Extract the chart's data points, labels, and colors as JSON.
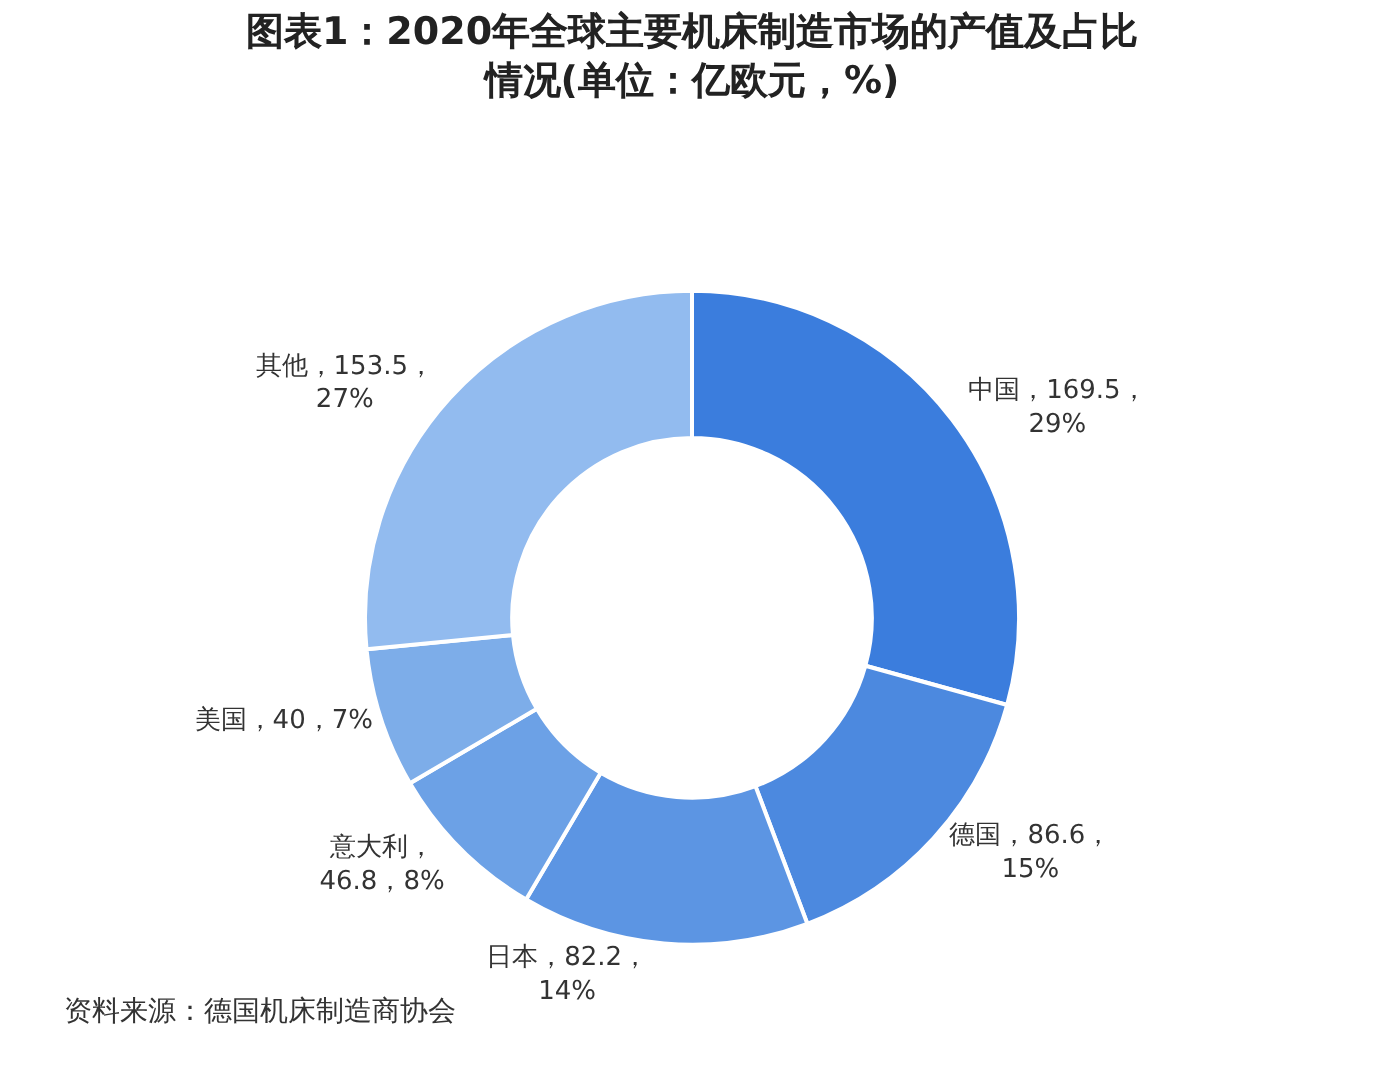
{
  "chart_data": {
    "type": "donut",
    "title": "图表1：2020年全球主要机床制造市场的产值及占比情况(单位：亿欧元，%)",
    "categories": [
      "中国",
      "德国",
      "日本",
      "意大利",
      "美国",
      "其他"
    ],
    "values": [
      169.5,
      86.6,
      82.2,
      46.8,
      40,
      153.5
    ],
    "value_labels": [
      "，169.5，\n29%",
      "，86.6，\n15%",
      "，82.2，\n14%",
      "，\n46.8，8%",
      "，40，7%",
      "，153.5，\n27%"
    ],
    "colors": [
      "#3b7ddd",
      "#4c89df",
      "#5c95e3",
      "#6ca1e6",
      "#7dade9",
      "#92bbef"
    ],
    "legend": false,
    "annotations": [
      "资料来源：德国机床制造商协会"
    ]
  }
}
